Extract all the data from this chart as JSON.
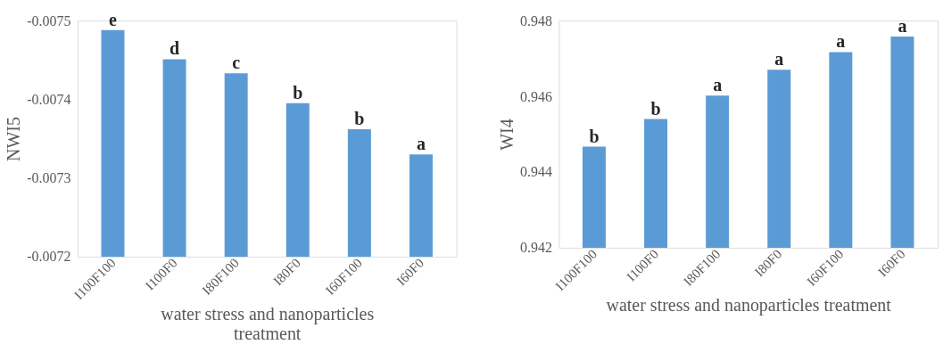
{
  "chart_data": [
    {
      "type": "bar",
      "categories": [
        "I100F100",
        "I100F0",
        "I80F100",
        "I80F0",
        "I60F100",
        "I60F0"
      ],
      "values": [
        -0.007488,
        -0.007451,
        -0.007433,
        -0.007395,
        -0.007362,
        -0.00733
      ],
      "color": "#5b9bd5",
      "value_labels": [
        "e",
        "d",
        "c",
        "b",
        "b",
        "a"
      ],
      "ylim": [
        -0.0072,
        -0.0075
      ],
      "yticks": [
        -0.0072,
        -0.0073,
        -0.0074,
        -0.0075
      ],
      "ylabel": "NWI5",
      "xlabel": "water stress and nanoparticles treatment"
    },
    {
      "type": "bar",
      "categories": [
        "I100F100",
        "I100F0",
        "I80F100",
        "I80F0",
        "I60F100",
        "I60F0"
      ],
      "values": [
        0.94467,
        0.9454,
        0.94602,
        0.9467,
        0.94717,
        0.94758
      ],
      "color": "#5b9bd5",
      "value_labels": [
        "b",
        "b",
        "a",
        "a",
        "a",
        "a"
      ],
      "ylim": [
        0.942,
        0.948
      ],
      "yticks": [
        0.942,
        0.944,
        0.946,
        0.948
      ],
      "ylabel": "WI4",
      "xlabel": "water stress and nanoparticles treatment"
    }
  ]
}
